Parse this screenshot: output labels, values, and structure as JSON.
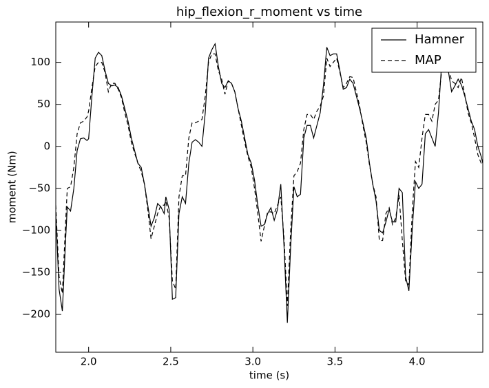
{
  "chart_data": {
    "type": "line",
    "title": "hip_flexion_r_moment vs time",
    "xlabel": "time (s)",
    "ylabel": "moment (Nm)",
    "xlim": [
      1.8,
      4.4
    ],
    "ylim": [
      -245,
      148
    ],
    "xticks": [
      {
        "value": 2,
        "label": "2.0"
      },
      {
        "value": 2.5,
        "label": "2.5"
      },
      {
        "value": 3,
        "label": "3.0"
      },
      {
        "value": 3.5,
        "label": "3.5"
      },
      {
        "value": 4,
        "label": "4.0"
      }
    ],
    "yticks": [
      {
        "value": -200,
        "label": "−200"
      },
      {
        "value": -150,
        "label": "−150"
      },
      {
        "value": -100,
        "label": "−100"
      },
      {
        "value": -50,
        "label": "−50"
      },
      0,
      50,
      100
    ],
    "grid": false,
    "legend": "upper right",
    "x": [
      1.8,
      1.82,
      1.84,
      1.86,
      1.87,
      1.89,
      1.91,
      1.93,
      1.95,
      1.97,
      1.99,
      2.0,
      2.02,
      2.04,
      2.06,
      2.08,
      2.1,
      2.12,
      2.14,
      2.16,
      2.18,
      2.2,
      2.22,
      2.24,
      2.26,
      2.28,
      2.3,
      2.32,
      2.34,
      2.36,
      2.38,
      2.4,
      2.42,
      2.44,
      2.46,
      2.47,
      2.49,
      2.51,
      2.53,
      2.55,
      2.57,
      2.59,
      2.61,
      2.63,
      2.65,
      2.67,
      2.69,
      2.71,
      2.73,
      2.75,
      2.77,
      2.79,
      2.81,
      2.83,
      2.85,
      2.87,
      2.89,
      2.91,
      2.93,
      2.95,
      2.97,
      2.99,
      3.01,
      3.03,
      3.05,
      3.07,
      3.09,
      3.11,
      3.13,
      3.15,
      3.17,
      3.19,
      3.21,
      3.23,
      3.25,
      3.27,
      3.29,
      3.31,
      3.33,
      3.35,
      3.37,
      3.39,
      3.41,
      3.43,
      3.45,
      3.47,
      3.49,
      3.51,
      3.53,
      3.55,
      3.57,
      3.59,
      3.61,
      3.63,
      3.65,
      3.67,
      3.69,
      3.71,
      3.73,
      3.75,
      3.77,
      3.79,
      3.81,
      3.83,
      3.85,
      3.87,
      3.89,
      3.91,
      3.93,
      3.95,
      3.97,
      3.99,
      4.01,
      4.03,
      4.05,
      4.07,
      4.09,
      4.11,
      4.13,
      4.15,
      4.17,
      4.19,
      4.21,
      4.23,
      4.25,
      4.27,
      4.29,
      4.31,
      4.33,
      4.35,
      4.37,
      4.39,
      4.4
    ],
    "series": [
      {
        "name": "Hamner",
        "color": "#000000",
        "dash": false,
        "values": [
          -80,
          -170,
          -196,
          -110,
          -72,
          -77,
          -50,
          -5,
          9,
          10,
          7,
          9,
          60,
          105,
          112,
          108,
          90,
          75,
          72,
          73,
          70,
          60,
          45,
          30,
          10,
          -5,
          -20,
          -25,
          -45,
          -70,
          -95,
          -85,
          -68,
          -72,
          -80,
          -60,
          -75,
          -182,
          -180,
          -80,
          -60,
          -68,
          -20,
          5,
          8,
          5,
          0,
          40,
          105,
          115,
          122,
          95,
          75,
          70,
          78,
          75,
          65,
          45,
          30,
          10,
          -10,
          -20,
          -40,
          -70,
          -95,
          -93,
          -80,
          -73,
          -88,
          -75,
          -45,
          -120,
          -210,
          -120,
          -48,
          -60,
          -57,
          10,
          25,
          25,
          10,
          25,
          40,
          73,
          118,
          108,
          110,
          110,
          90,
          68,
          70,
          80,
          75,
          60,
          45,
          28,
          10,
          -20,
          -45,
          -65,
          -100,
          -103,
          -90,
          -75,
          -90,
          -90,
          -50,
          -55,
          -155,
          -172,
          -100,
          -42,
          -50,
          -45,
          15,
          20,
          10,
          0,
          40,
          100,
          125,
          90,
          65,
          72,
          80,
          73,
          60,
          45,
          30,
          20,
          0,
          -12,
          -20
        ]
      },
      {
        "name": "MAP",
        "color": "#000000",
        "dash": true,
        "values": [
          -70,
          -155,
          -175,
          -90,
          -50,
          -48,
          -25,
          15,
          28,
          30,
          35,
          42,
          70,
          95,
          100,
          100,
          88,
          65,
          75,
          75,
          68,
          58,
          40,
          25,
          5,
          -8,
          -20,
          -30,
          -45,
          -75,
          -110,
          -95,
          -80,
          -70,
          -70,
          -65,
          -85,
          -160,
          -170,
          -60,
          -35,
          -35,
          10,
          28,
          28,
          30,
          32,
          60,
          100,
          110,
          110,
          90,
          80,
          62,
          78,
          75,
          65,
          45,
          25,
          5,
          -12,
          -25,
          -50,
          -80,
          -113,
          -95,
          -78,
          -78,
          -80,
          -70,
          -60,
          -110,
          -190,
          -100,
          -35,
          -30,
          -20,
          20,
          38,
          38,
          32,
          42,
          48,
          60,
          105,
          95,
          100,
          105,
          88,
          70,
          75,
          83,
          82,
          65,
          48,
          25,
          5,
          -22,
          -45,
          -60,
          -112,
          -112,
          -80,
          -73,
          -93,
          -85,
          -58,
          -112,
          -160,
          -165,
          -80,
          -18,
          -25,
          10,
          38,
          38,
          30,
          50,
          55,
          90,
          115,
          95,
          78,
          75,
          70,
          82,
          62,
          40,
          28,
          10,
          -10,
          -20,
          -22
        ]
      }
    ]
  }
}
